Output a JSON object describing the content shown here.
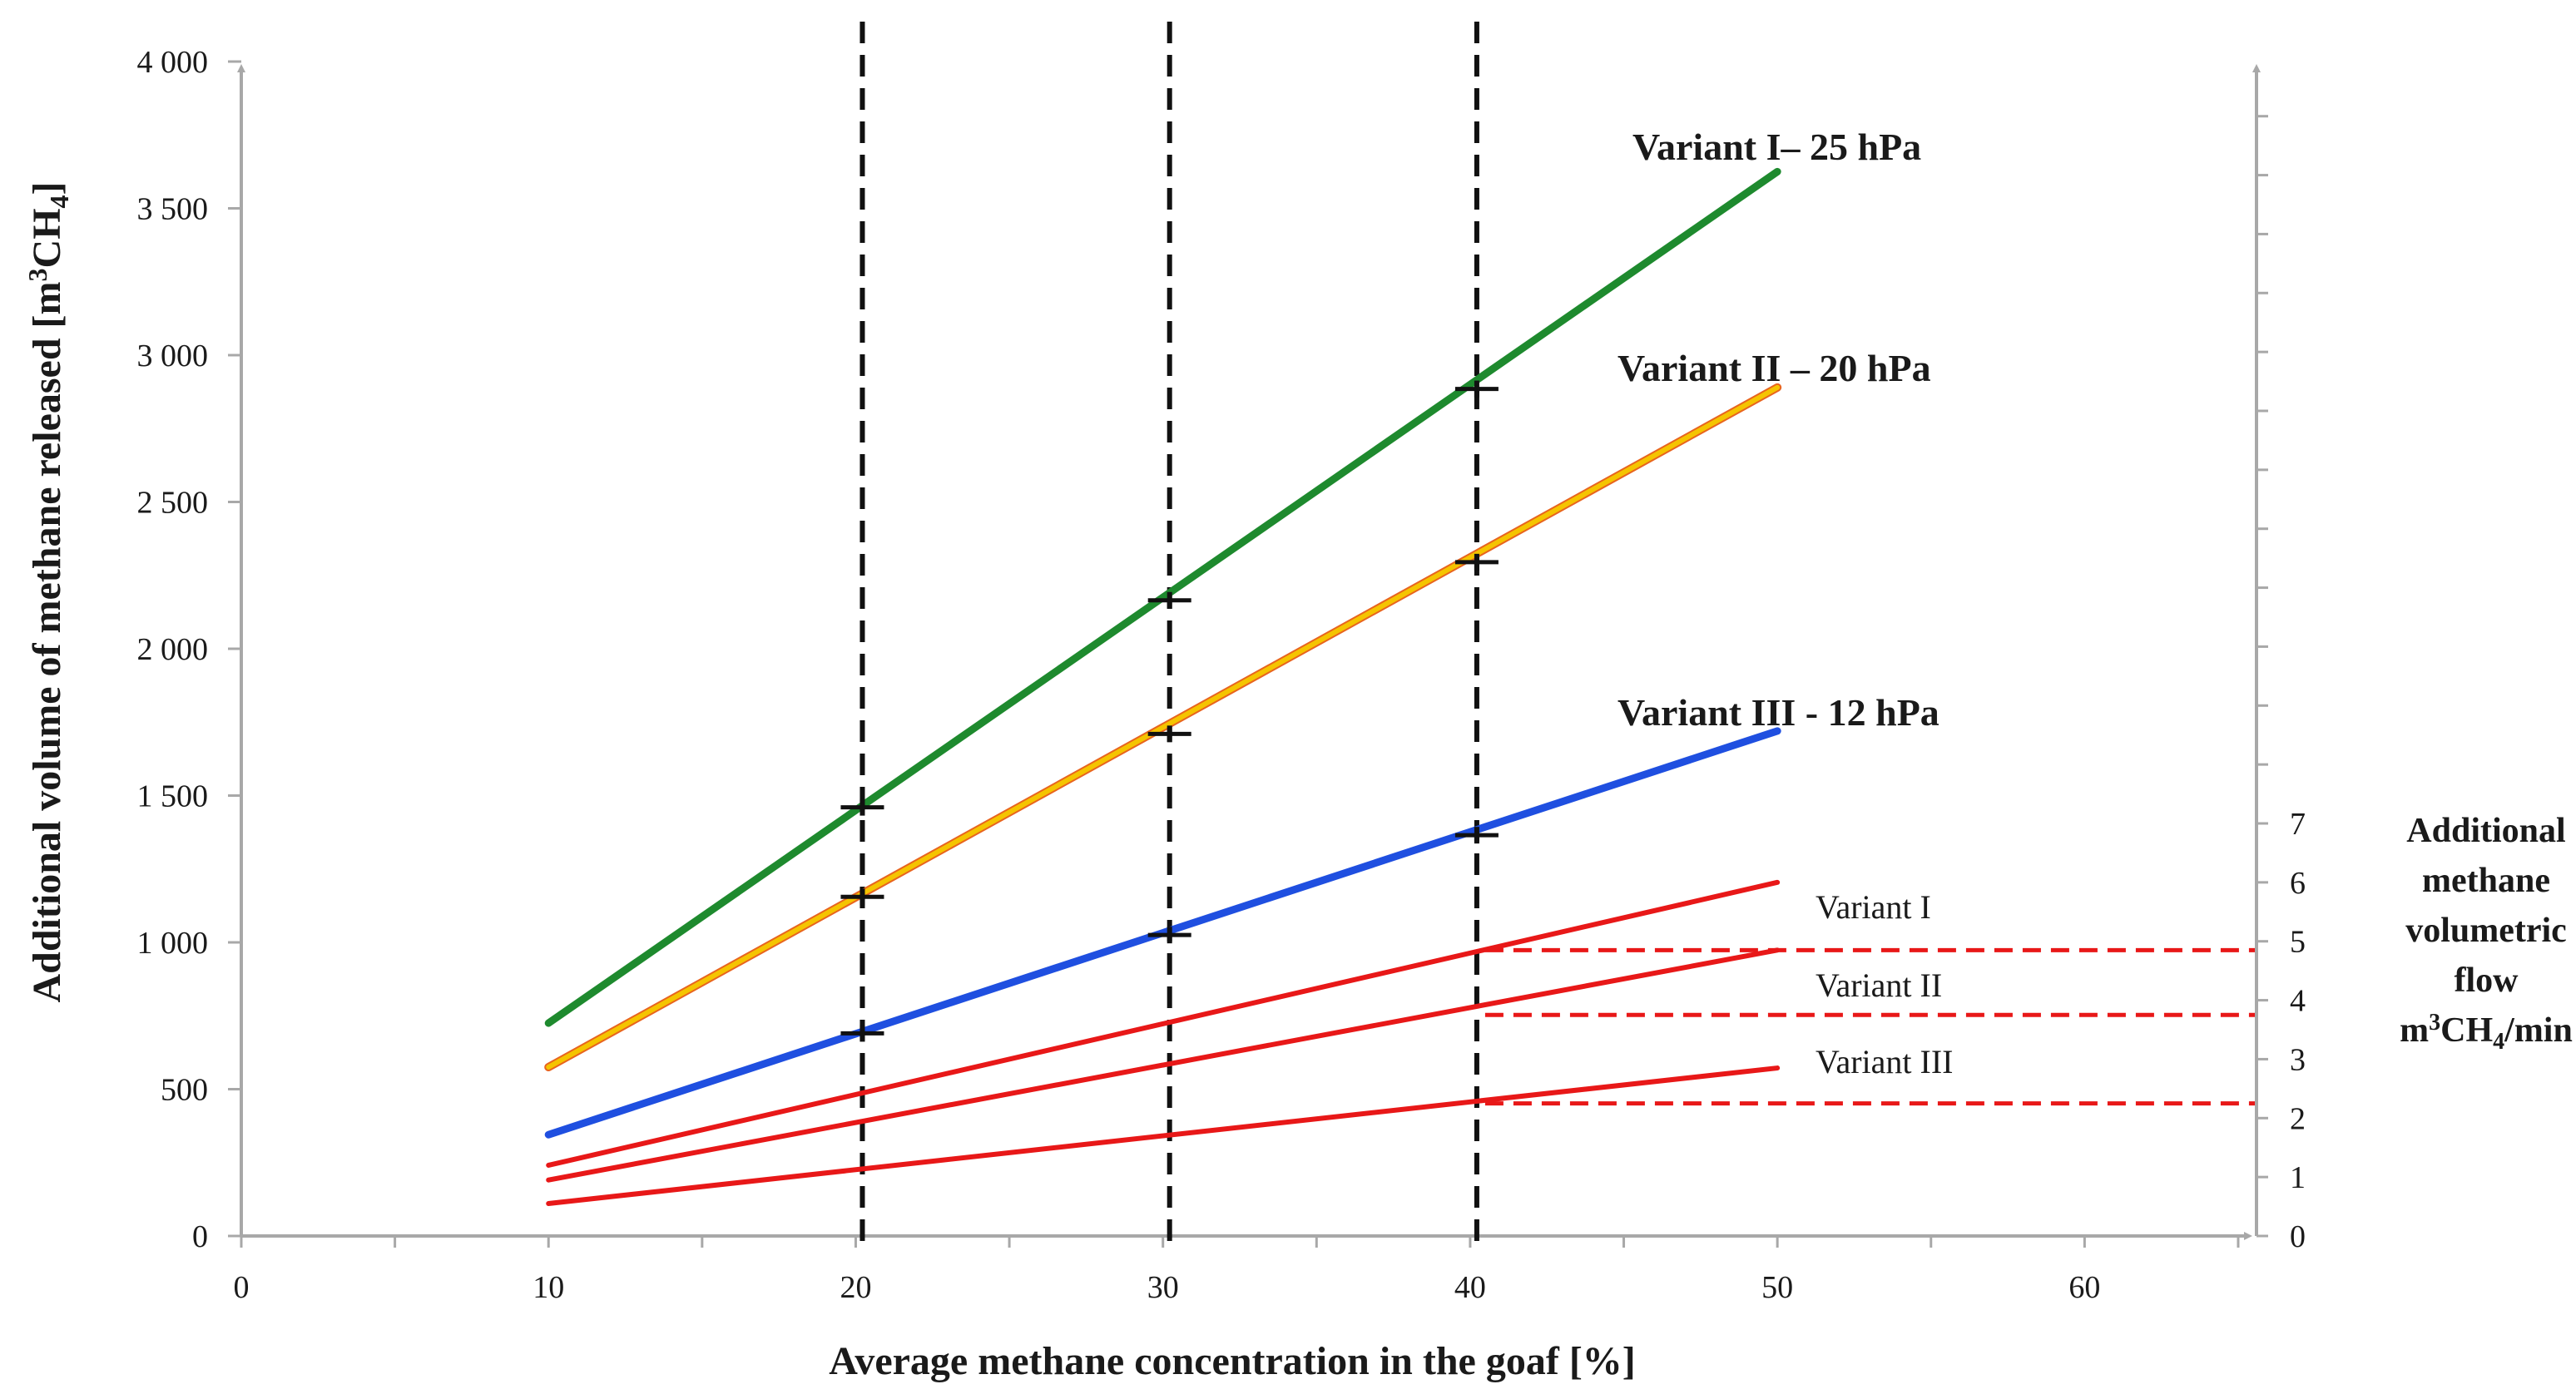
{
  "chart_data": {
    "type": "line",
    "x": [
      10,
      50
    ],
    "xlabel": "Average methane concentration in the goaf [%]",
    "xlim": [
      0,
      65
    ],
    "x_ticks": [
      0,
      10,
      20,
      30,
      40,
      50,
      60
    ],
    "x_tick_labels": [
      "0",
      "10",
      "20",
      "30",
      "40",
      "50",
      "60"
    ],
    "ylabel_parts": [
      "Additional volume of methane released [m",
      "3",
      "CH",
      "4",
      "]"
    ],
    "ylim": [
      0,
      4000
    ],
    "y_ticks": [
      0,
      500,
      1000,
      1500,
      2000,
      2500,
      3000,
      3500,
      4000
    ],
    "y_tick_labels": [
      "0",
      "500",
      "1 000",
      "1 500",
      "2 000",
      "2 500",
      "3 000",
      "3 500",
      "4 000"
    ],
    "y2label_lines": [
      "Additional",
      "methane",
      "volumetric",
      "flow"
    ],
    "y2label_unit_parts": [
      "m",
      "3",
      "CH",
      "4",
      "/min"
    ],
    "y2lim": [
      0,
      20
    ],
    "y2_ticks": [
      0,
      1,
      2,
      3,
      4,
      5,
      6,
      7
    ],
    "y2_tick_labels": [
      "0",
      "1",
      "2",
      "3",
      "4",
      "5",
      "6",
      "7"
    ],
    "vertical_markers": [
      20,
      30,
      40
    ],
    "series": [
      {
        "name": "Variant I– 25 hPa",
        "axis": "left",
        "color": "#1e8a2e",
        "x": [
          10,
          50
        ],
        "values": [
          725,
          3625
        ]
      },
      {
        "name": "Variant II – 20 hPa",
        "axis": "left",
        "color": "#f5c400",
        "edge_color": "#e8641e",
        "x": [
          10,
          50
        ],
        "values": [
          575,
          2890
        ]
      },
      {
        "name": "Variant III - 12 hPa",
        "axis": "left",
        "color": "#1f4fe0",
        "x": [
          10,
          50
        ],
        "values": [
          345,
          1720
        ]
      },
      {
        "name": "Variant I",
        "axis": "right",
        "color": "#e81818",
        "x": [
          10,
          50
        ],
        "values": [
          1.2,
          6.0
        ]
      },
      {
        "name": "Variant II",
        "axis": "right",
        "color": "#e81818",
        "x": [
          10,
          50
        ],
        "values": [
          0.95,
          4.85
        ]
      },
      {
        "name": "Variant III",
        "axis": "right",
        "color": "#e81818",
        "x": [
          10,
          50
        ],
        "values": [
          0.55,
          2.85
        ]
      }
    ],
    "error_marks": [
      {
        "series": "Variant I– 25 hPa",
        "x": [
          20,
          30,
          40
        ],
        "values": [
          1460,
          2165,
          2885
        ]
      },
      {
        "series": "Variant II – 20 hPa",
        "x": [
          20,
          30,
          40
        ],
        "values": [
          1155,
          1710,
          2295
        ]
      },
      {
        "series": "Variant III - 12 hPa",
        "x": [
          20,
          30,
          40
        ],
        "values": [
          690,
          1025,
          1365
        ]
      }
    ],
    "reference_lines": [
      {
        "x_from": 40,
        "y2": 4.85
      },
      {
        "x_from": 40,
        "y2": 3.75
      },
      {
        "x_from": 40,
        "y2": 2.25
      }
    ]
  }
}
